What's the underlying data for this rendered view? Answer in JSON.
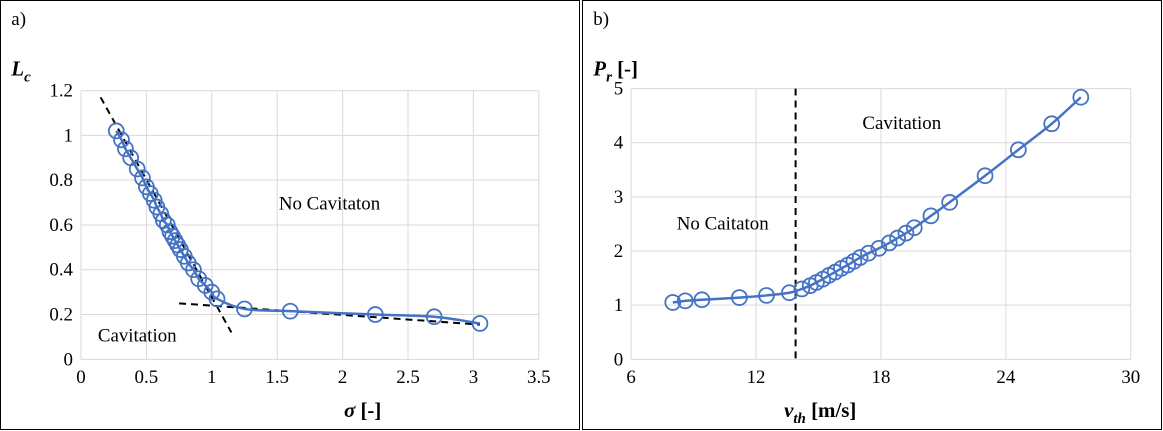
{
  "colors": {
    "series": "#4472C4",
    "grid": "#d9d9d9",
    "trend": "#000000"
  },
  "chart_data": [
    {
      "type": "line",
      "panel_label": "a)",
      "xlabel_symbol": "σ",
      "xlabel_unit": " [-]",
      "ylabel_symbol": "L",
      "ylabel_sub": "c",
      "xlim": [
        0,
        3.5
      ],
      "ylim": [
        0,
        1.2
      ],
      "xticks": [
        "0",
        "0.5",
        "1",
        "1.5",
        "2",
        "2.5",
        "3",
        "3.5"
      ],
      "yticks": [
        "0",
        "0.2",
        "0.4",
        "0.6",
        "0.8",
        "1",
        "1.2"
      ],
      "grid": true,
      "markers": "open-circle",
      "series": [
        {
          "x": [
            0.27,
            0.31,
            0.34,
            0.38,
            0.43,
            0.47,
            0.5,
            0.53,
            0.56,
            0.58,
            0.61,
            0.63,
            0.66,
            0.68,
            0.7,
            0.72,
            0.74,
            0.76,
            0.79,
            0.82,
            0.86,
            0.9,
            0.95,
            1.0,
            1.04,
            1.25,
            1.6,
            2.25,
            2.7,
            3.05
          ],
          "y": [
            1.02,
            0.98,
            0.94,
            0.9,
            0.85,
            0.81,
            0.77,
            0.74,
            0.71,
            0.68,
            0.65,
            0.62,
            0.6,
            0.57,
            0.55,
            0.53,
            0.51,
            0.49,
            0.46,
            0.43,
            0.4,
            0.36,
            0.33,
            0.3,
            0.27,
            0.225,
            0.215,
            0.2,
            0.19,
            0.16
          ]
        }
      ],
      "trendlines": [
        {
          "x": [
            0.15,
            1.15
          ],
          "y": [
            1.17,
            0.12
          ]
        },
        {
          "x": [
            0.75,
            3.05
          ],
          "y": [
            0.25,
            0.155
          ]
        }
      ],
      "annotations": [
        {
          "text": "No Cavitaton",
          "x": 1.9,
          "y": 0.67
        },
        {
          "text": "Cavitation",
          "x": 0.43,
          "y": 0.08
        }
      ]
    },
    {
      "type": "line",
      "panel_label": "b)",
      "xlabel_symbol": "v",
      "xlabel_sub": "th",
      "xlabel_unit": " [m/s]",
      "ylabel_symbol": "P",
      "ylabel_sub": "r",
      "ylabel_unit": " [-]",
      "xlim": [
        6,
        30
      ],
      "ylim": [
        0,
        5
      ],
      "xticks": [
        "6",
        "12",
        "18",
        "24",
        "30"
      ],
      "yticks": [
        "0",
        "1",
        "2",
        "3",
        "4",
        "5"
      ],
      "grid": true,
      "markers": "open-circle",
      "series": [
        {
          "x": [
            8.0,
            8.6,
            9.4,
            11.2,
            12.5,
            13.6,
            14.2,
            14.6,
            14.9,
            15.2,
            15.5,
            15.8,
            16.1,
            16.4,
            16.7,
            17.0,
            17.4,
            17.9,
            18.4,
            18.8,
            19.2,
            19.6,
            20.4,
            21.3,
            23.0,
            24.6,
            26.2,
            27.6
          ],
          "y": [
            1.05,
            1.08,
            1.1,
            1.14,
            1.18,
            1.23,
            1.3,
            1.36,
            1.42,
            1.48,
            1.55,
            1.61,
            1.68,
            1.74,
            1.81,
            1.88,
            1.96,
            2.05,
            2.15,
            2.24,
            2.33,
            2.43,
            2.65,
            2.9,
            3.39,
            3.87,
            4.35,
            4.84
          ]
        }
      ],
      "vline": {
        "x": 13.9
      },
      "annotations": [
        {
          "text": "Cavitation",
          "x": 19,
          "y": 4.25
        },
        {
          "text": "No Caitaton",
          "x": 10.4,
          "y": 2.4
        }
      ]
    }
  ]
}
